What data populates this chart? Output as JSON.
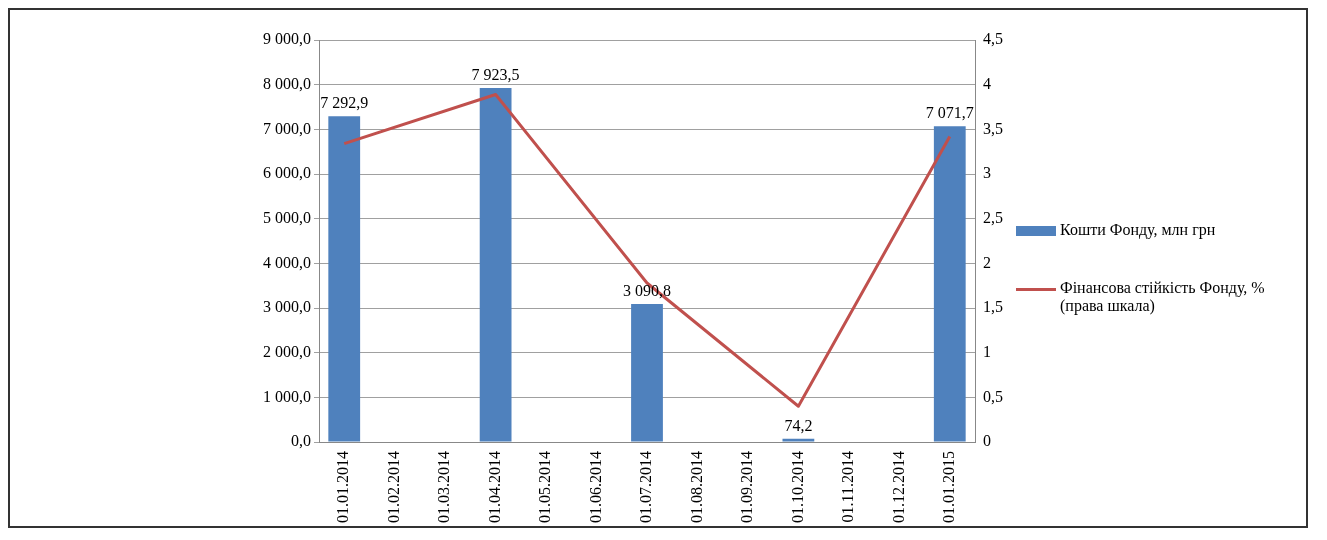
{
  "chart_data": {
    "type": "bar",
    "categories": [
      "01.01.2014",
      "01.02.2014",
      "01.03.2014",
      "01.04.2014",
      "01.05.2014",
      "01.06.2014",
      "01.07.2014",
      "01.08.2014",
      "01.09.2014",
      "01.10.2014",
      "01.11.2014",
      "01.12.2014",
      "01.01.2015"
    ],
    "series": [
      {
        "name": "Кошти Фонду, млн грн",
        "color": "#4f81bd",
        "values": [
          7292.9,
          null,
          null,
          7923.5,
          null,
          null,
          3090.8,
          null,
          null,
          74.2,
          null,
          null,
          7071.7
        ],
        "value_labels": [
          "7 292,9",
          null,
          null,
          "7 923,5",
          null,
          null,
          "3 090,8",
          null,
          null,
          "74,2",
          null,
          null,
          "7 071,7"
        ]
      },
      {
        "name": "Фінансова стійкість Фонду, % (права шкала)",
        "type": "line",
        "axis": "y2",
        "color": "#c0504d",
        "values": [
          3.34,
          null,
          null,
          3.89,
          null,
          null,
          1.78,
          null,
          null,
          0.4,
          null,
          null,
          3.42
        ]
      }
    ],
    "ylim": [
      0,
      9000
    ],
    "yticks": [
      {
        "value": 0,
        "label": "0,0"
      },
      {
        "value": 1000,
        "label": "1 000,0"
      },
      {
        "value": 2000,
        "label": "2 000,0"
      },
      {
        "value": 3000,
        "label": "3 000,0"
      },
      {
        "value": 4000,
        "label": "4 000,0"
      },
      {
        "value": 5000,
        "label": "5 000,0"
      },
      {
        "value": 6000,
        "label": "6 000,0"
      },
      {
        "value": 7000,
        "label": "7 000,0"
      },
      {
        "value": 8000,
        "label": "8 000,0"
      },
      {
        "value": 9000,
        "label": "9 000,0"
      }
    ],
    "y2lim": [
      0,
      4.5
    ],
    "y2ticks": [
      0,
      {
        "value": 0.5,
        "label": "0,5"
      },
      1,
      {
        "value": 1.5,
        "label": "1,5"
      },
      2,
      {
        "value": 2.5,
        "label": "2,5"
      },
      3,
      {
        "value": 3.5,
        "label": "3,5"
      },
      4,
      {
        "value": 4.5,
        "label": "4,5"
      }
    ],
    "grid": "y",
    "legend": "right",
    "marker": "none"
  }
}
